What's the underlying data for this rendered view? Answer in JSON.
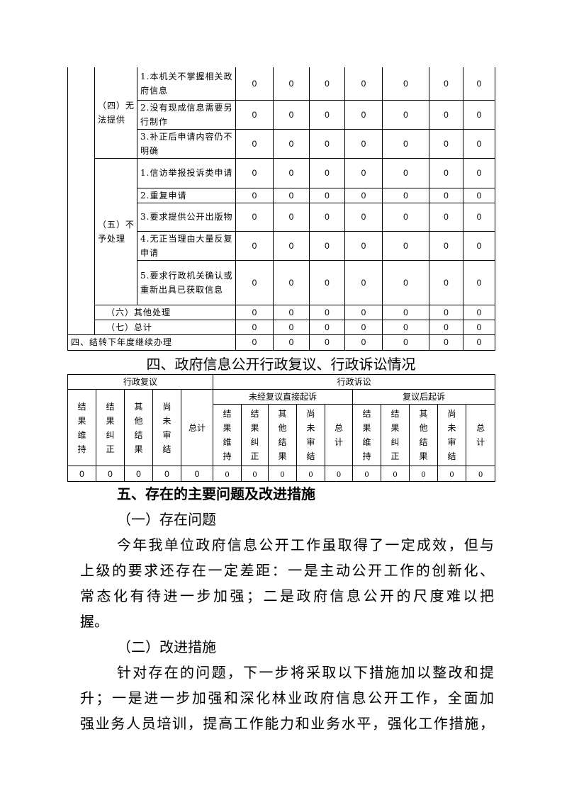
{
  "table_disposal": {
    "rows": [
      {
        "group": "（四）无法提供",
        "label": "1.本机关不掌握相关政府信息",
        "values": [
          "0",
          "0",
          "0",
          "0",
          "0",
          "0",
          "0"
        ]
      },
      {
        "label": "2.没有现成信息需要另行制作",
        "values": [
          "0",
          "0",
          "0",
          "0",
          "0",
          "0",
          "0"
        ]
      },
      {
        "label": "3.补正后申请内容仍不明确",
        "values": [
          "0",
          "0",
          "0",
          "0",
          "0",
          "0",
          "0"
        ]
      },
      {
        "group": "（五）不予处理",
        "label": "1.信访举报投诉类申请",
        "values": [
          "0",
          "0",
          "0",
          "0",
          "0",
          "0",
          "0"
        ]
      },
      {
        "label": "2.重复申请",
        "values": [
          "0",
          "0",
          "0",
          "0",
          "0",
          "0",
          "0"
        ]
      },
      {
        "label": "3.要求提供公开出版物",
        "values": [
          "0",
          "0",
          "0",
          "0",
          "0",
          "0",
          "0"
        ]
      },
      {
        "label": "4.无正当理由大量反复申请",
        "values": [
          "0",
          "0",
          "0",
          "0",
          "0",
          "0",
          "0"
        ]
      },
      {
        "label": "5.要求行政机关确认或重新出具已获取信息",
        "values": [
          "0",
          "0",
          "0",
          "0",
          "0",
          "0",
          "0"
        ]
      },
      {
        "label": "（六）其他处理",
        "values": [
          "0",
          "0",
          "0",
          "0",
          "0",
          "0",
          "0"
        ]
      },
      {
        "label": "（七）总计",
        "values": [
          "0",
          "0",
          "0",
          "0",
          "0",
          "0",
          "0"
        ]
      },
      {
        "label": "四、结转下年度继续办理",
        "values": [
          "0",
          "0",
          "0",
          "0",
          "0",
          "0",
          "0"
        ]
      }
    ]
  },
  "section4_title": "四、政府信息公开行政复议、行政诉讼情况",
  "table_review": {
    "review_header": "行政复议",
    "litigation_header": "行政诉讼",
    "direct_header": "未经复议直接起诉",
    "after_review_header": "复议后起诉",
    "columns": [
      "结果维持",
      "结果纠正",
      "其他结果",
      "尚未审结",
      "总计"
    ],
    "review_values": [
      "0",
      "0",
      "0",
      "0",
      "0"
    ],
    "direct_values": [
      "0",
      "0",
      "0",
      "0",
      "0"
    ],
    "after_values": [
      "0",
      "0",
      "0",
      "0",
      "0"
    ]
  },
  "section5": {
    "title": "五、存在的主要问题及改进措施",
    "sub1": "（一）存在问题",
    "para1": [
      "今年我单位政府信息公开工作虽取得了一定成效，但与",
      "上级的要求还存在一定差距：一是主动公开工作的创新化、",
      "常态化有待进一步加强；二是政府信息公开的尺度难以把",
      "握。"
    ],
    "sub2": "（二）改进措施",
    "para2": [
      "针对存在的问题，下一步将采取以下措施加以整改和提",
      "升；一是进一步加强和深化林业政府信息公开工作，全面加",
      "强业务人员培训，提高工作能力和业务水平，强化工作措施，"
    ]
  }
}
